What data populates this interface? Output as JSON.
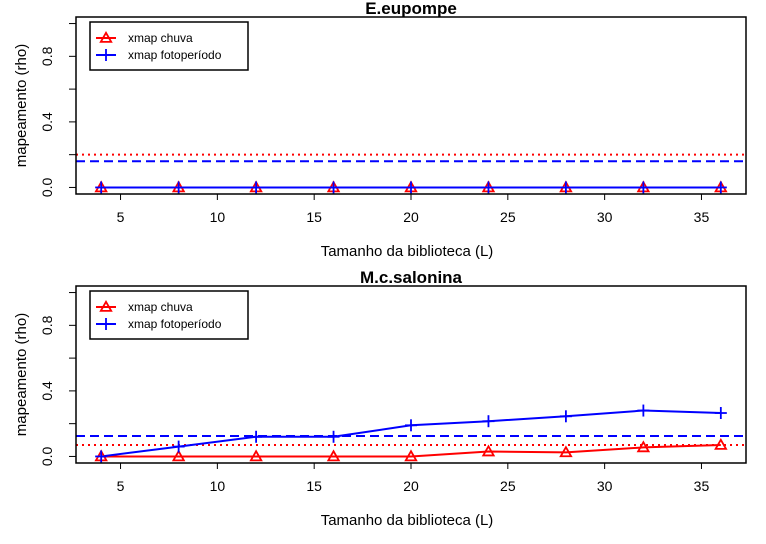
{
  "chart_data": [
    {
      "type": "line",
      "title": "E.eupompe",
      "xlabel": "Tamanho da biblioteca (L)",
      "ylabel": "mapeamento (rho)",
      "x": [
        4,
        8,
        12,
        16,
        20,
        24,
        28,
        32,
        36
      ],
      "xlim": [
        2.7,
        37.3
      ],
      "ylim": [
        -0.04,
        1.04
      ],
      "xticks": [
        5,
        10,
        15,
        20,
        25,
        30,
        35
      ],
      "yticks": [
        0.0,
        0.4,
        0.8
      ],
      "ytick_labels": [
        "0.0",
        "0.4",
        "0.8"
      ],
      "legend_position": "top-left",
      "series": [
        {
          "name": "xmap chuva",
          "color": "#ff0000",
          "marker": "triangle",
          "values": [
            0,
            0,
            0,
            0,
            0,
            0,
            0,
            0,
            0
          ]
        },
        {
          "name": "xmap fotoperíodo",
          "color": "#0000ff",
          "marker": "plus",
          "values": [
            0,
            0,
            0,
            0,
            0,
            0,
            0,
            0,
            0
          ]
        }
      ],
      "hlines": [
        {
          "color": "#ff0000",
          "style": "dotted",
          "y": 0.2
        },
        {
          "color": "#0000ff",
          "style": "dashed",
          "y": 0.16
        }
      ]
    },
    {
      "type": "line",
      "title": "M.c.salonina",
      "xlabel": "Tamanho da biblioteca (L)",
      "ylabel": "mapeamento (rho)",
      "x": [
        4,
        8,
        12,
        16,
        20,
        24,
        28,
        32,
        36
      ],
      "xlim": [
        2.7,
        37.3
      ],
      "ylim": [
        -0.04,
        1.04
      ],
      "xticks": [
        5,
        10,
        15,
        20,
        25,
        30,
        35
      ],
      "yticks": [
        0.0,
        0.4,
        0.8
      ],
      "ytick_labels": [
        "0.0",
        "0.4",
        "0.8"
      ],
      "legend_position": "top-left",
      "series": [
        {
          "name": "xmap chuva",
          "color": "#ff0000",
          "marker": "triangle",
          "values": [
            0,
            0,
            0,
            0,
            0,
            0.03,
            0.025,
            0.055,
            0.07
          ]
        },
        {
          "name": "xmap fotoperíodo",
          "color": "#0000ff",
          "marker": "plus",
          "values": [
            0,
            0.06,
            0.12,
            0.12,
            0.19,
            0.215,
            0.245,
            0.28,
            0.265
          ]
        }
      ],
      "hlines": [
        {
          "color": "#ff0000",
          "style": "dotted",
          "y": 0.07
        },
        {
          "color": "#0000ff",
          "style": "dashed",
          "y": 0.125
        }
      ]
    }
  ]
}
